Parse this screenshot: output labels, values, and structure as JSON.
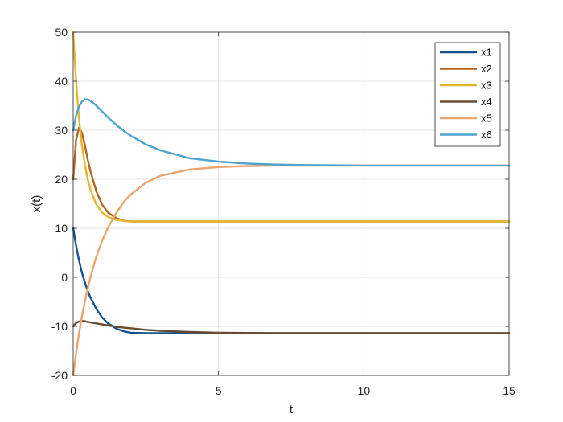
{
  "chart_data": {
    "type": "line",
    "xlabel": "t",
    "ylabel": "x(t)",
    "xlim": [
      0,
      15
    ],
    "ylim": [
      -20,
      50
    ],
    "xticks": [
      0,
      5,
      10,
      15
    ],
    "yticks": [
      -20,
      -10,
      0,
      10,
      20,
      30,
      40,
      50
    ],
    "grid": true,
    "legend_position": "top-right",
    "x": [
      0,
      0.1,
      0.2,
      0.3,
      0.4,
      0.5,
      0.6,
      0.8,
      1.0,
      1.2,
      1.5,
      1.8,
      2.0,
      2.5,
      3.0,
      4.0,
      5.0,
      6.0,
      7.0,
      8.0,
      9.0,
      10.0,
      11.0,
      12.0,
      13.0,
      14.0,
      15.0
    ],
    "series": [
      {
        "name": "x1",
        "color": "#15538e",
        "values": [
          10,
          6.5,
          3.5,
          1.0,
          -1.0,
          -2.8,
          -4.2,
          -6.5,
          -8.2,
          -9.4,
          -10.5,
          -11.1,
          -11.3,
          -11.4,
          -11.4,
          -11.4,
          -11.4,
          -11.4,
          -11.4,
          -11.4,
          -11.4,
          -11.4,
          -11.4,
          -11.4,
          -11.4,
          -11.4,
          -11.4
        ]
      },
      {
        "name": "x2",
        "color": "#b5651d",
        "values": [
          20,
          28,
          30.5,
          29.5,
          27,
          24,
          21.5,
          17.5,
          14.8,
          13.2,
          12.0,
          11.5,
          11.4,
          11.4,
          11.4,
          11.4,
          11.4,
          11.4,
          11.4,
          11.4,
          11.4,
          11.4,
          11.4,
          11.4,
          11.4,
          11.4,
          11.4
        ]
      },
      {
        "name": "x3",
        "color": "#e5b62e",
        "values": [
          50,
          40,
          32.5,
          27,
          23,
          20,
          17.8,
          14.8,
          13.2,
          12.3,
          11.7,
          11.5,
          11.4,
          11.4,
          11.4,
          11.4,
          11.4,
          11.4,
          11.4,
          11.4,
          11.4,
          11.4,
          11.4,
          11.4,
          11.4,
          11.4,
          11.4
        ]
      },
      {
        "name": "x4",
        "color": "#6a4a34",
        "values": [
          -10,
          -9.3,
          -9.0,
          -8.9,
          -8.95,
          -9.1,
          -9.2,
          -9.4,
          -9.6,
          -9.8,
          -10.1,
          -10.3,
          -10.4,
          -10.7,
          -10.9,
          -11.15,
          -11.3,
          -11.35,
          -11.4,
          -11.4,
          -11.4,
          -11.4,
          -11.4,
          -11.4,
          -11.4,
          -11.4,
          -11.4
        ]
      },
      {
        "name": "x5",
        "color": "#eba46c",
        "values": [
          -20,
          -15.5,
          -11.5,
          -8,
          -5,
          -2.3,
          0.2,
          4.3,
          7.5,
          10.2,
          13.3,
          15.8,
          17.0,
          19.3,
          20.7,
          22.0,
          22.5,
          22.7,
          22.8,
          22.8,
          22.8,
          22.8,
          22.8,
          22.8,
          22.8,
          22.8,
          22.8
        ]
      },
      {
        "name": "x6",
        "color": "#4fa3cc",
        "values": [
          30,
          33,
          34.8,
          35.8,
          36.3,
          36.3,
          36.0,
          35.0,
          33.8,
          32.6,
          31.0,
          29.6,
          28.8,
          27.1,
          25.9,
          24.3,
          23.6,
          23.2,
          23.0,
          22.9,
          22.85,
          22.8,
          22.8,
          22.8,
          22.8,
          22.8,
          22.8
        ]
      }
    ]
  }
}
